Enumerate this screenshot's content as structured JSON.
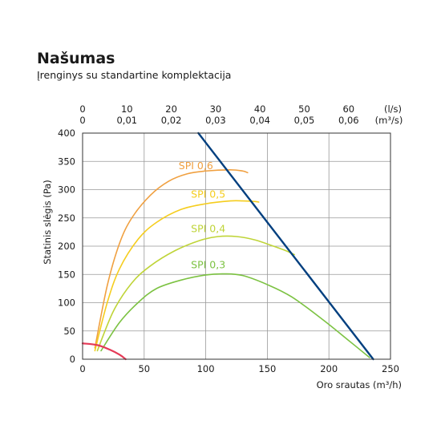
{
  "title": "Našumas",
  "subtitle": "Įrenginys su standartine komplektacija",
  "chart_data": {
    "type": "line",
    "xlabel": "Oro srautas (m³/h)",
    "ylabel": "Statinis slėgis (Pa)",
    "xlim": [
      0,
      250
    ],
    "ylim": [
      0,
      400
    ],
    "x_ticks": [
      0,
      50,
      100,
      150,
      200,
      250
    ],
    "y_ticks": [
      0,
      50,
      100,
      150,
      200,
      250,
      300,
      350,
      400
    ],
    "grid": true,
    "top_axis_ls": {
      "unit_label": "(l/s)",
      "ticks": [
        {
          "value": 0,
          "label": "0"
        },
        {
          "value": 10,
          "label": "10"
        },
        {
          "value": 20,
          "label": "20"
        },
        {
          "value": 30,
          "label": "30"
        },
        {
          "value": 40,
          "label": "40"
        },
        {
          "value": 50,
          "label": "50"
        },
        {
          "value": 60,
          "label": "60"
        }
      ]
    },
    "top_axis_m3s": {
      "unit_label": "(m³/s)",
      "ticks": [
        {
          "value": 0,
          "label": "0"
        },
        {
          "value": 0.01,
          "label": "0,01"
        },
        {
          "value": 0.02,
          "label": "0,02"
        },
        {
          "value": 0.03,
          "label": "0,03"
        },
        {
          "value": 0.04,
          "label": "0,04"
        },
        {
          "value": 0.05,
          "label": "0,05"
        },
        {
          "value": 0.06,
          "label": "0,06"
        }
      ]
    },
    "series": [
      {
        "name": "SPI 0,6",
        "color": "#f0a040",
        "points": [
          [
            10,
            20
          ],
          [
            20,
            130
          ],
          [
            30,
            205
          ],
          [
            40,
            250
          ],
          [
            55,
            290
          ],
          [
            70,
            315
          ],
          [
            85,
            328
          ],
          [
            100,
            333
          ],
          [
            120,
            335
          ],
          [
            130,
            333
          ],
          [
            134,
            330
          ]
        ]
      },
      {
        "name": "SPI 0,5",
        "color": "#f5cd1e",
        "points": [
          [
            10,
            15
          ],
          [
            20,
            100
          ],
          [
            30,
            160
          ],
          [
            45,
            212
          ],
          [
            60,
            242
          ],
          [
            80,
            265
          ],
          [
            100,
            275
          ],
          [
            120,
            280
          ],
          [
            130,
            280
          ],
          [
            140,
            279
          ],
          [
            143,
            278
          ]
        ]
      },
      {
        "name": "SPI 0,4",
        "color": "#bfd438",
        "points": [
          [
            12,
            15
          ],
          [
            25,
            85
          ],
          [
            40,
            135
          ],
          [
            55,
            165
          ],
          [
            75,
            192
          ],
          [
            95,
            210
          ],
          [
            110,
            217
          ],
          [
            125,
            217
          ],
          [
            140,
            211
          ],
          [
            155,
            200
          ],
          [
            165,
            192
          ],
          [
            172,
            185
          ]
        ]
      },
      {
        "name": "SPI 0,3",
        "color": "#7cc242",
        "points": [
          [
            15,
            15
          ],
          [
            30,
            65
          ],
          [
            45,
            100
          ],
          [
            60,
            125
          ],
          [
            80,
            140
          ],
          [
            100,
            149
          ],
          [
            115,
            151
          ],
          [
            130,
            148
          ],
          [
            150,
            132
          ],
          [
            170,
            110
          ],
          [
            195,
            70
          ],
          [
            215,
            35
          ],
          [
            233,
            3
          ]
        ]
      },
      {
        "name": "",
        "color": "#003f7f",
        "points": [
          [
            94,
            400
          ],
          [
            236,
            0
          ]
        ]
      },
      {
        "name": "",
        "color": "#e53a57",
        "points": [
          [
            0,
            28
          ],
          [
            12,
            25
          ],
          [
            22,
            17
          ],
          [
            30,
            8
          ],
          [
            35,
            0
          ]
        ]
      }
    ],
    "annotations": [
      {
        "text": "SPI 0,6",
        "x": 78,
        "y": 336,
        "color": "#f0a040"
      },
      {
        "text": "SPI 0,5",
        "x": 88,
        "y": 286,
        "color": "#f5cd1e"
      },
      {
        "text": "SPI 0,4",
        "x": 88,
        "y": 225,
        "color": "#bfd438"
      },
      {
        "text": "SPI 0,3",
        "x": 88,
        "y": 161,
        "color": "#7cc242"
      }
    ]
  }
}
